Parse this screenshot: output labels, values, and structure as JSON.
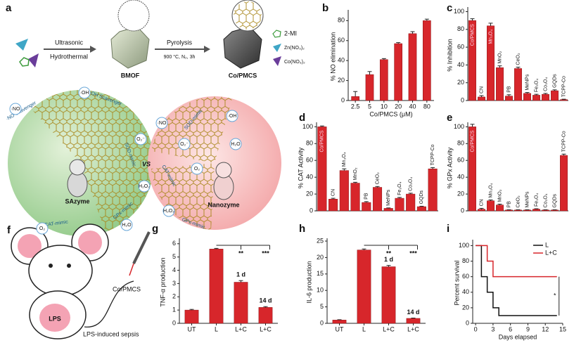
{
  "panels": {
    "a": {
      "letter": "a",
      "ultrasonic": "Ultrasonic",
      "hydrothermal": "Hydrothermal",
      "pyrolysis": "Pyrolysis",
      "conditions": "900 °C, N₂, 3h",
      "bmof": "BMOF",
      "product": "Co/PMCS",
      "legend": [
        "2-MI",
        "Zn(NO₃)₂",
        "Co(NO₃)₂"
      ],
      "versus": "VS",
      "left_name": "SAzyme",
      "right_name": "Nanozyme",
      "labels": [
        "·NO Scavenger",
        "·OH Scavenger",
        "SOD-mimic",
        "CAT-mimic",
        "GPx-mimic",
        "SOD-mimic",
        "CAT-mimic",
        "GPx-mimic"
      ],
      "bubbles": [
        "·NO",
        "·OH",
        "O₂⁻",
        "H₂O₂",
        "O₂",
        "H₂O",
        "·NO",
        "O₂⁻",
        "H₂O₂",
        "·OH",
        "H₂O",
        "O₂"
      ]
    },
    "f": {
      "letter": "f",
      "drug": "Co/PMCS",
      "lps": "LPS",
      "caption": "LPS-induced sepsis"
    }
  },
  "chart_data": [
    {
      "panel": "b",
      "type": "bar",
      "ylabel": "% NO elimination",
      "xlabel": "Co/PMCS (μM)",
      "categories": [
        "2.5",
        "5",
        "10",
        "20",
        "40",
        "80"
      ],
      "values": [
        4,
        26,
        41,
        57,
        67,
        80
      ],
      "errors": [
        5,
        3,
        1,
        1,
        2,
        1.5
      ],
      "color": "#d7262b",
      "ylim": [
        0,
        88
      ],
      "yticks": [
        0,
        20,
        40,
        60,
        80
      ]
    },
    {
      "panel": "c",
      "type": "bar",
      "ylabel": "% Inhibition",
      "categories": [
        "Co/PMCS",
        "CN",
        "Mn₃O₄",
        "MnO₂",
        "PB",
        "CeO₂",
        "MeNPs",
        "Fe₃O₄",
        "Co₃O₄",
        "GQDs",
        "TCPP-Co"
      ],
      "values": [
        90,
        4,
        84,
        37,
        5,
        36,
        8,
        6,
        7,
        11,
        1
      ],
      "errors": [
        2,
        1.5,
        3,
        2,
        1.5,
        1.5,
        1,
        1,
        1,
        1,
        0.5
      ],
      "color": "#d7262b",
      "ylim": [
        0,
        102
      ],
      "yticks": [
        0,
        20,
        40,
        60,
        80,
        100
      ]
    },
    {
      "panel": "d",
      "type": "bar",
      "ylabel": "% CAT Activity",
      "categories": [
        "Co/PMCS",
        "CN",
        "Mn₃O₄",
        "MnO₂",
        "PB",
        "CeO₂",
        "MeNPs",
        "Fe₃O₄",
        "Co₃O₄",
        "GQDs",
        "TCPP-Co"
      ],
      "values": [
        100,
        14,
        48,
        33,
        10,
        28,
        3,
        15,
        20,
        5,
        50
      ],
      "errors": [
        1,
        1,
        2,
        1,
        1,
        1,
        0.5,
        1,
        1,
        0.5,
        1.5
      ],
      "color": "#d7262b",
      "ylim": [
        0,
        102
      ],
      "yticks": [
        0,
        20,
        40,
        60,
        80,
        100
      ]
    },
    {
      "panel": "e",
      "type": "bar",
      "ylabel": "% GPx Activity",
      "categories": [
        "Co/PMCS",
        "CN",
        "Mn₃O₄",
        "MnO₂",
        "PB",
        "CeO₂",
        "MeNPs",
        "Fe₃O₄",
        "Co₃O₄",
        "GQDs",
        "TCPP-Co"
      ],
      "values": [
        100,
        2,
        12,
        7,
        1,
        1,
        1,
        2,
        1,
        1,
        66
      ],
      "errors": [
        3,
        1,
        1,
        1,
        0.3,
        0.3,
        0.3,
        0.5,
        0.3,
        0.3,
        1.5
      ],
      "color": "#d7262b",
      "ylim": [
        0,
        102
      ],
      "yticks": [
        0,
        20,
        40,
        60,
        80,
        100
      ]
    },
    {
      "panel": "g",
      "type": "bar",
      "ylabel": "TNF-α production",
      "categories": [
        "UT",
        "L",
        "L+C",
        "L+C"
      ],
      "values": [
        1.0,
        5.6,
        3.1,
        1.2
      ],
      "errors": [
        0.05,
        0.05,
        0.12,
        0.06
      ],
      "color": "#d7262b",
      "ylim": [
        0,
        6.2
      ],
      "yticks": [
        0,
        1,
        2,
        3,
        4,
        5,
        6
      ],
      "annotations": [
        "**",
        "***",
        "1 d",
        "14 d"
      ]
    },
    {
      "panel": "h",
      "type": "bar",
      "ylabel": "IL-6 production",
      "categories": [
        "UT",
        "L",
        "L+C",
        "L+C"
      ],
      "values": [
        1,
        22.3,
        17.2,
        1.5
      ],
      "errors": [
        0.1,
        0.3,
        0.4,
        0.1
      ],
      "color": "#d7262b",
      "ylim": [
        0,
        25
      ],
      "yticks": [
        0,
        5,
        10,
        15,
        20,
        25
      ],
      "annotations": [
        "**",
        "***",
        "1 d",
        "14 d"
      ]
    },
    {
      "panel": "i",
      "type": "line",
      "ylabel": "Percent survival",
      "xlabel": "Days elapsed",
      "xlim": [
        -0.5,
        15
      ],
      "xticks": [
        0,
        3,
        6,
        9,
        12,
        15
      ],
      "ylim": [
        0,
        104
      ],
      "yticks": [
        0,
        20,
        40,
        60,
        80,
        100
      ],
      "legend": "upper right",
      "annotations": [
        "*"
      ],
      "series": [
        {
          "name": "L",
          "color": "#111111",
          "x": [
            0,
            1,
            1,
            2,
            2,
            3,
            3,
            4,
            4,
            14
          ],
          "values": [
            100,
            100,
            60,
            60,
            40,
            40,
            20,
            20,
            10,
            10
          ]
        },
        {
          "name": "L+C",
          "color": "#d7262b",
          "x": [
            0,
            2,
            2,
            3,
            3,
            14
          ],
          "values": [
            100,
            100,
            80,
            80,
            60,
            60
          ]
        }
      ]
    }
  ]
}
